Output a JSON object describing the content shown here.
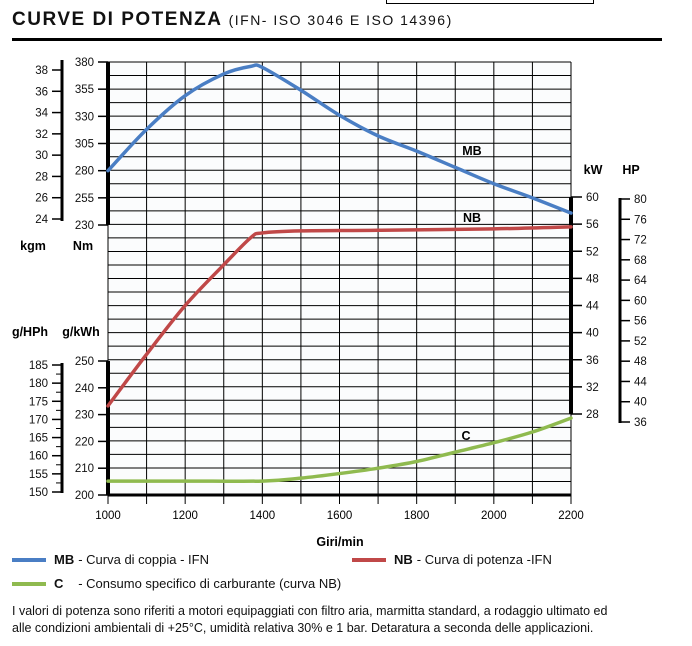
{
  "title": "CURVE DI POTENZA",
  "subtitle": "(IFN- ISO 3046 E ISO 14396)",
  "legend": [
    {
      "key": "MB",
      "text": "- Curva di coppia - IFN",
      "color": "#4a7ec4"
    },
    {
      "key": "NB",
      "text": "- Curva di potenza  -IFN",
      "color": "#c04848"
    },
    {
      "key": "C",
      "text": "   - Consumo specifico di carburante (curva NB)",
      "color": "#8fba4f"
    }
  ],
  "note_line1": "I valori di potenza sono riferiti a motori equipaggiati con filtro aria, marmitta standard, a rodaggio ultimato ed",
  "note_line2": "alle condizioni ambientali di +25°C, umidità relativa 30% e 1 bar.  Detaratura a seconda delle applicazioni.",
  "chart_data": {
    "type": "line",
    "xlabel": "Giri/min",
    "xlim": [
      1000,
      2200
    ],
    "xticks": [
      1000,
      1200,
      1400,
      1600,
      1800,
      2000,
      2200
    ],
    "grid": true,
    "axes": {
      "nm": {
        "label": "Nm",
        "range": [
          230,
          380
        ],
        "ticks": [
          380,
          355,
          330,
          305,
          280,
          255,
          230
        ]
      },
      "kgm": {
        "label": "kgm",
        "range": [
          24,
          38
        ],
        "ticks": [
          38,
          36,
          34,
          32,
          30,
          28,
          26,
          24
        ]
      },
      "gkwh": {
        "label": "g/kWh",
        "range": [
          200,
          250
        ],
        "ticks": [
          250,
          240,
          230,
          220,
          210,
          200
        ]
      },
      "ghph": {
        "label": "g/HPh",
        "range": [
          150,
          185
        ],
        "ticks": [
          185,
          180,
          175,
          170,
          165,
          160,
          155,
          150
        ]
      },
      "kw": {
        "label": "kW",
        "range": [
          28,
          60
        ],
        "ticks": [
          60,
          56,
          52,
          48,
          44,
          40,
          36,
          32,
          28
        ]
      },
      "hp": {
        "label": "HP",
        "range": [
          36,
          80
        ],
        "ticks": [
          80,
          76,
          72,
          68,
          64,
          60,
          56,
          52,
          48,
          44,
          40,
          36
        ]
      }
    },
    "series": [
      {
        "name": "MB",
        "axis": "nm",
        "color": "#4a7ec4",
        "x": [
          1000,
          1100,
          1200,
          1300,
          1370,
          1400,
          1500,
          1600,
          1700,
          1800,
          1900,
          2000,
          2100,
          2200
        ],
        "y": [
          280,
          318,
          349,
          369,
          376,
          375,
          354,
          331,
          312,
          298,
          283,
          268,
          255,
          241
        ]
      },
      {
        "name": "NB",
        "axis": "kw",
        "color": "#c04848",
        "x": [
          1000,
          1100,
          1200,
          1300,
          1370,
          1400,
          1500,
          1700,
          2000,
          2200
        ],
        "y": [
          29.2,
          36.8,
          44,
          50,
          54,
          54.7,
          55,
          55.1,
          55.3,
          55.6
        ]
      },
      {
        "name": "C",
        "axis": "gkwh",
        "color": "#8fba4f",
        "x": [
          1000,
          1200,
          1400,
          1500,
          1600,
          1700,
          1800,
          1900,
          2000,
          2100,
          2200
        ],
        "y": [
          205.2,
          205.2,
          205.2,
          206.3,
          208,
          210,
          212.5,
          216,
          219.5,
          223.5,
          228.7
        ]
      }
    ]
  }
}
